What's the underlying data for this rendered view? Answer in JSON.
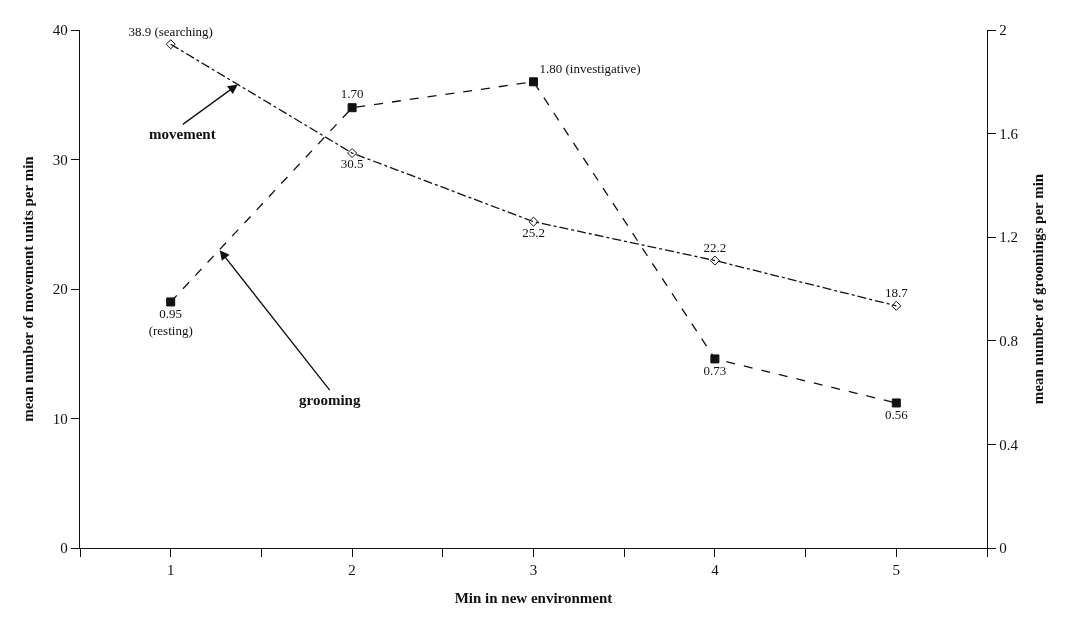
{
  "chart_data": {
    "type": "line",
    "xlabel": "Min in new environment",
    "ylabel": "mean number of movement units per min",
    "y2label": "mean number of groomings per min",
    "x": [
      1,
      2,
      3,
      4,
      5
    ],
    "xlim": [
      0.5,
      5.5
    ],
    "xticks": [
      {
        "value": 0.5,
        "label": null
      },
      1,
      {
        "value": 1.5,
        "label": null
      },
      2,
      {
        "value": 2.5,
        "label": null
      },
      3,
      {
        "value": 3.5,
        "label": null
      },
      4,
      {
        "value": 4.5,
        "label": null
      },
      5,
      {
        "value": 5.5,
        "label": null
      }
    ],
    "ylim": [
      0,
      40
    ],
    "yticks": [
      0,
      10,
      20,
      30,
      40
    ],
    "y2lim": [
      0,
      2
    ],
    "y2ticks": [
      0,
      0.4,
      0.8,
      1.2,
      1.6,
      2
    ],
    "series": [
      {
        "color": "#111111",
        "marker": "diamond",
        "line_style": "dotted",
        "values": [
          38.9,
          30.5,
          25.2,
          22.2,
          18.7
        ],
        "value_labels": [
          "38.9 (searching)",
          "30.5",
          "25.2",
          "22.2",
          "18.7"
        ]
      },
      {
        "color": "#111111",
        "marker": "square",
        "line_style": "dashed",
        "axis": "y2",
        "values": [
          0.95,
          1.7,
          1.8,
          0.73,
          0.56
        ],
        "value_labels": [
          "0.95\n(resting)",
          "1.70",
          "1.80 (investigative)",
          "0.73",
          "0.56"
        ]
      }
    ],
    "annotations": [
      {
        "text": "movement",
        "x": 1.37,
        "y": 35.8
      },
      {
        "text": "grooming",
        "x": 1.27,
        "y": 23.0
      }
    ]
  }
}
